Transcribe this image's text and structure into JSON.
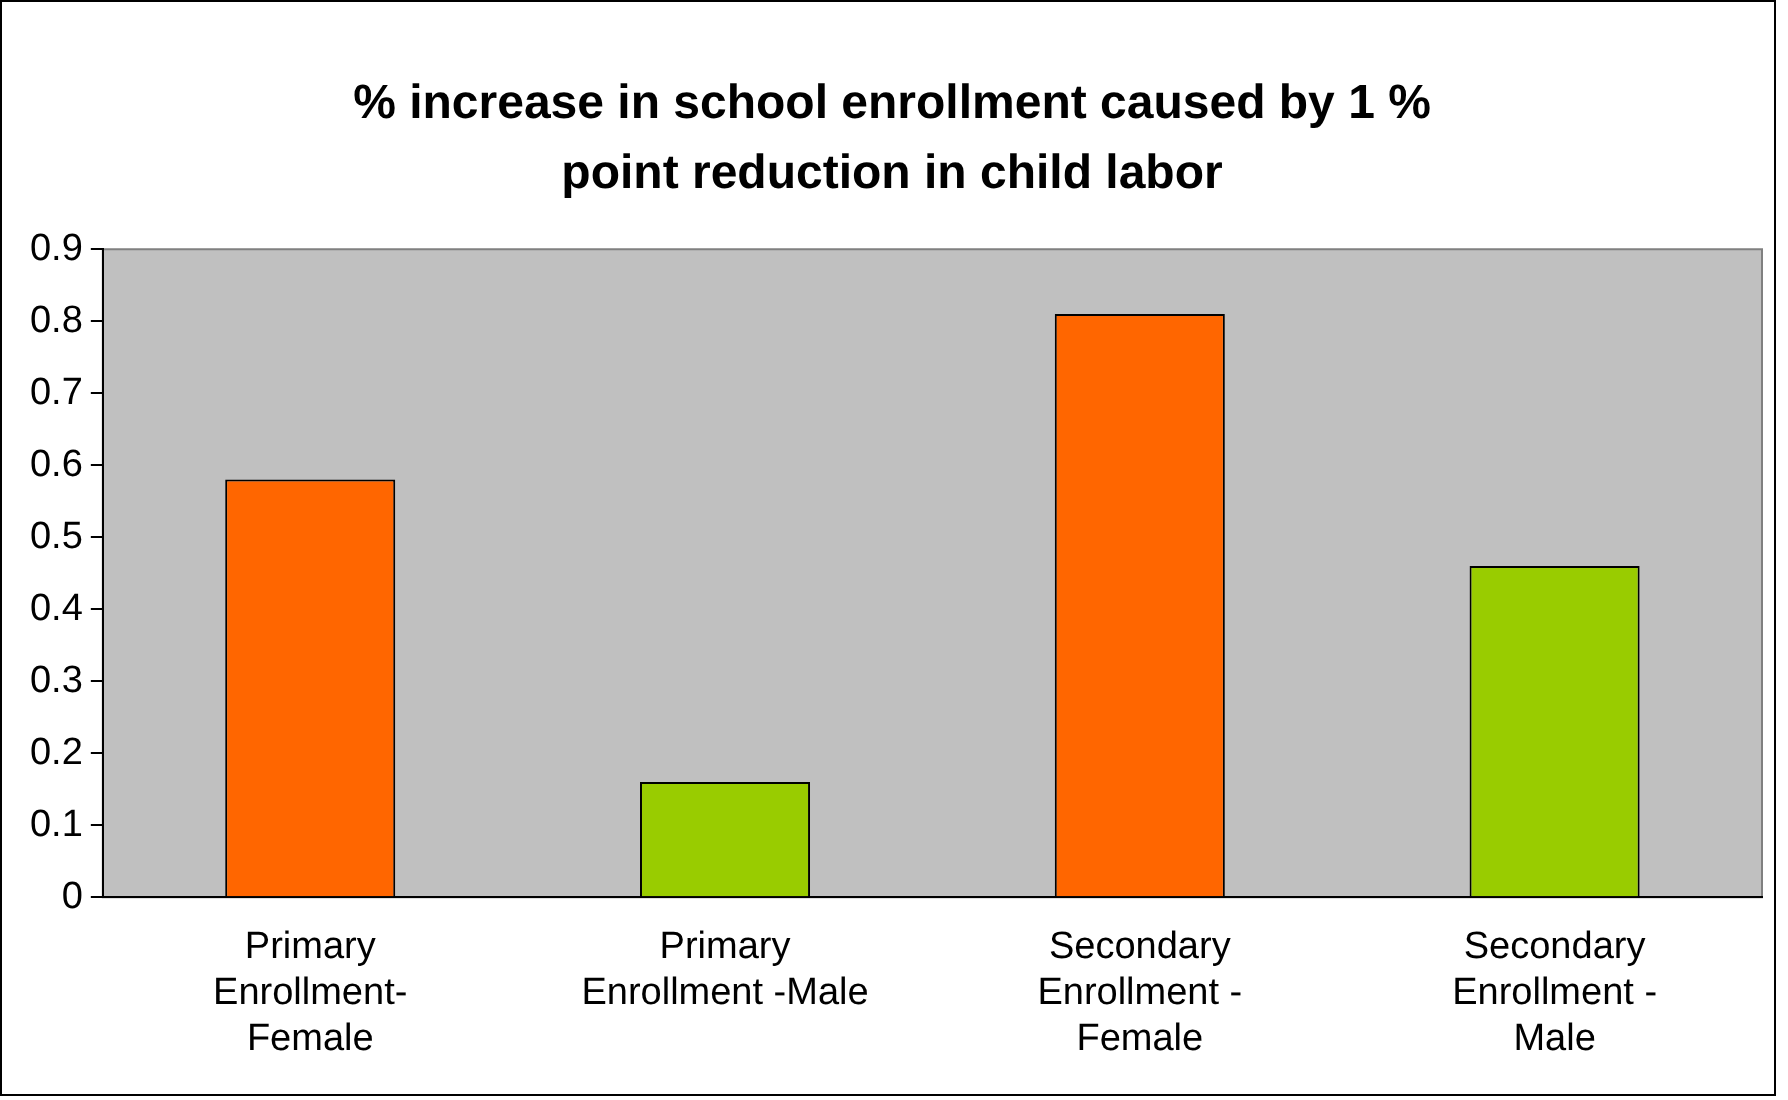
{
  "chart_data": {
    "type": "bar",
    "title": "% increase in school enrollment caused by 1 %\npoint reduction in child labor",
    "categories": [
      "Primary\nEnrollment-\nFemale",
      "Primary\nEnrollment -Male",
      "Secondary\nEnrollment -\nFemale",
      "Secondary\nEnrollment -\nMale"
    ],
    "values": [
      0.58,
      0.16,
      0.81,
      0.46
    ],
    "colors": [
      "#ff6600",
      "#99cc00",
      "#ff6600",
      "#99cc00"
    ],
    "ylim": [
      0,
      0.9
    ],
    "yticks": [
      0,
      0.1,
      0.2,
      0.3,
      0.4,
      0.5,
      0.6,
      0.7,
      0.8,
      0.9
    ],
    "grid": false,
    "legend": false
  }
}
